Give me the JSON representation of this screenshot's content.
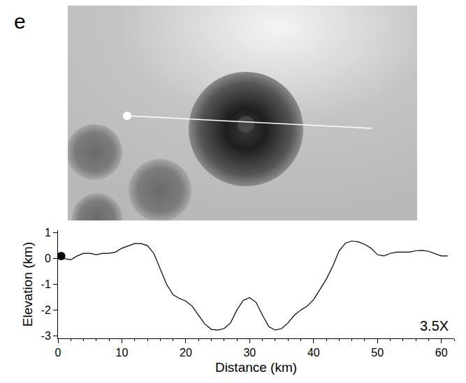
{
  "panel_label": "e",
  "chart_data": {
    "type": "line",
    "xlabel": "Distance (km)",
    "ylabel": "Elevation (km)",
    "annotation": "3.5X",
    "color": "#000000",
    "x": [
      0,
      1,
      2,
      3,
      4,
      5,
      6,
      7,
      8,
      9,
      10,
      11,
      12,
      13,
      14,
      15,
      16,
      17,
      18,
      19,
      20,
      21,
      22,
      23,
      24,
      25,
      26,
      27,
      28,
      29,
      30,
      31,
      32,
      33,
      34,
      35,
      36,
      37,
      38,
      39,
      40,
      41,
      42,
      43,
      44,
      45,
      46,
      47,
      48,
      49,
      50,
      51,
      52,
      53,
      54,
      55,
      56,
      57,
      58,
      59,
      60,
      61
    ],
    "values": [
      0.1,
      0,
      -0.05,
      0.1,
      0.2,
      0.2,
      0.15,
      0.2,
      0.2,
      0.25,
      0.4,
      0.5,
      0.58,
      0.58,
      0.5,
      0.2,
      -0.4,
      -1.0,
      -1.4,
      -1.55,
      -1.65,
      -1.85,
      -2.2,
      -2.55,
      -2.75,
      -2.78,
      -2.72,
      -2.5,
      -2.0,
      -1.62,
      -1.52,
      -1.7,
      -2.2,
      -2.65,
      -2.78,
      -2.72,
      -2.5,
      -2.2,
      -2.0,
      -1.85,
      -1.6,
      -1.2,
      -0.8,
      -0.3,
      0.3,
      0.6,
      0.68,
      0.65,
      0.55,
      0.4,
      0.15,
      0.1,
      0.2,
      0.25,
      0.25,
      0.25,
      0.3,
      0.32,
      0.28,
      0.2,
      0.1,
      0.1
    ],
    "start_point": {
      "x": 0.5,
      "y": 0.1
    },
    "xlim": [
      0,
      62
    ],
    "ylim": [
      -3.1,
      1.1
    ],
    "xticks": [
      0,
      10,
      20,
      30,
      40,
      50,
      60
    ],
    "yticks": [
      -3,
      -2,
      -1,
      0,
      1
    ],
    "grid": false
  }
}
